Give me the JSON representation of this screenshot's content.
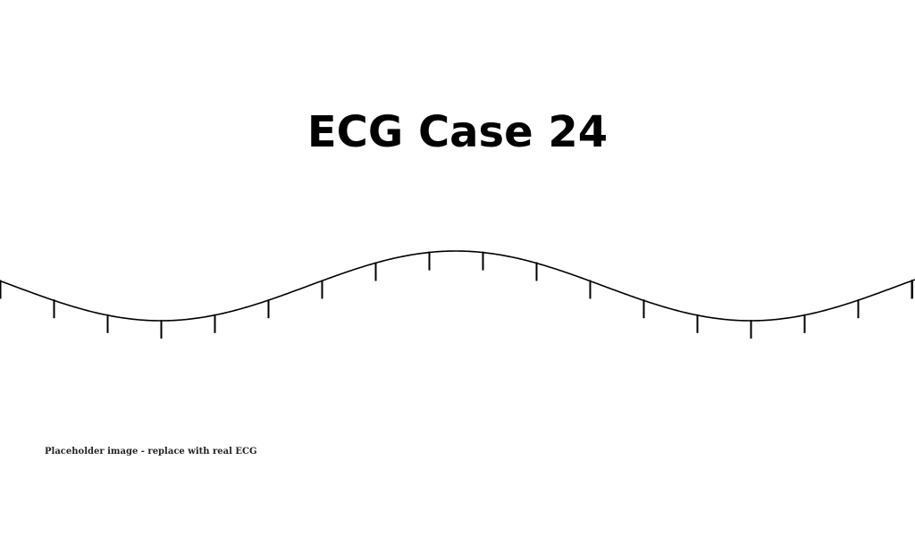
{
  "title": "ECG Case 24",
  "caption": "Placeholder image - replace with real ECG",
  "colors": {
    "background": "#ffffff",
    "trace": "#000000",
    "caption": "#222222"
  }
}
